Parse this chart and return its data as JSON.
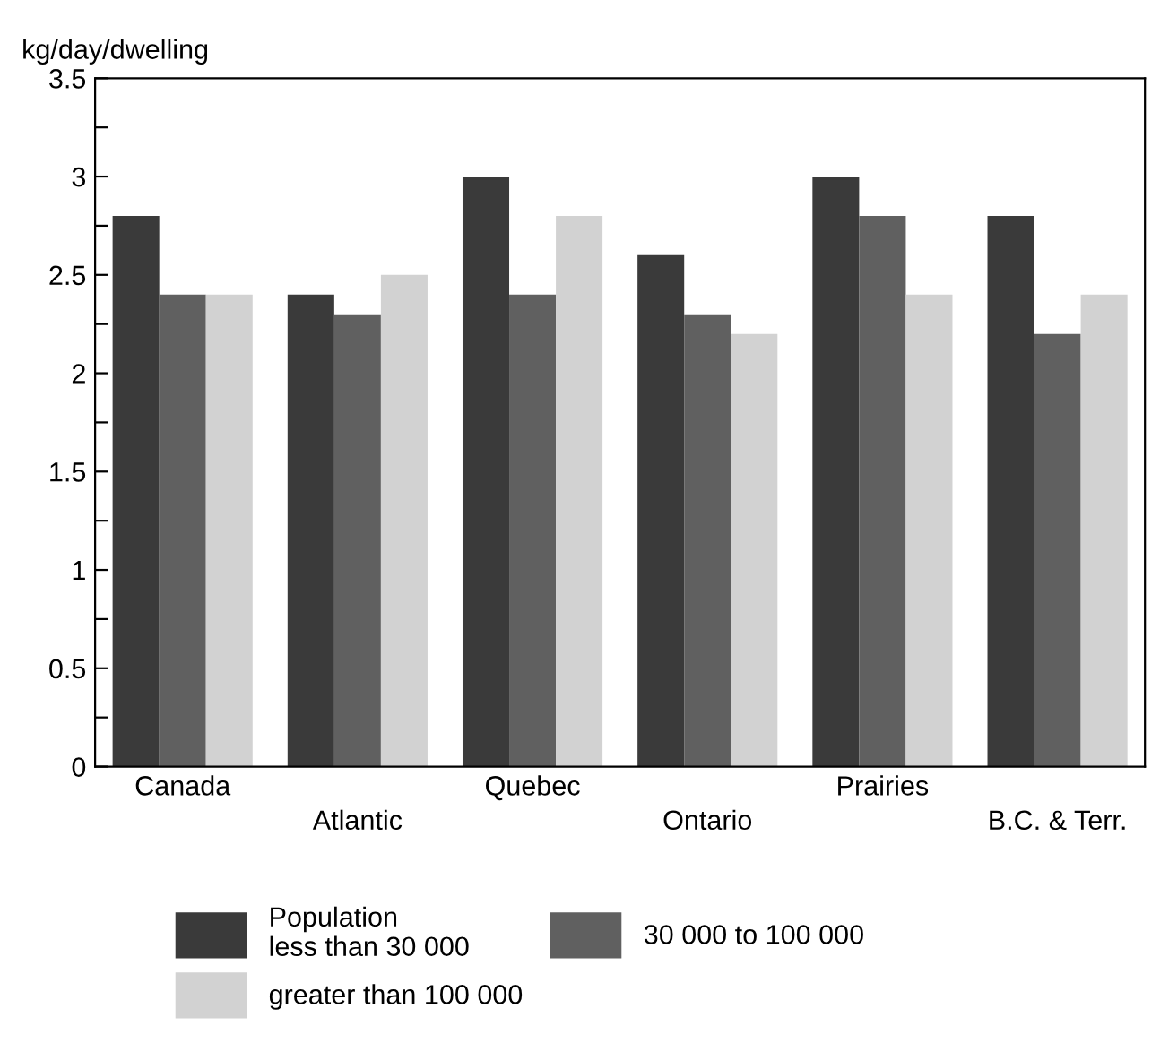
{
  "chart_data": {
    "type": "bar",
    "ylabel": "kg/day/dwelling",
    "categories": [
      "Canada",
      "Atlantic",
      "Quebec",
      "Ontario",
      "Prairies",
      "B.C. & Terr."
    ],
    "series": [
      {
        "name": "Population\nless than 30 000",
        "color": "#3a3a3a",
        "values": [
          2.8,
          2.4,
          3.0,
          2.6,
          3.0,
          2.8
        ]
      },
      {
        "name": "30 000 to 100 000",
        "color": "#606060",
        "values": [
          2.4,
          2.3,
          2.4,
          2.3,
          2.8,
          2.2
        ]
      },
      {
        "name": "greater than 100 000",
        "color": "#d2d2d2",
        "values": [
          2.4,
          2.5,
          2.8,
          2.2,
          2.4,
          2.4
        ]
      }
    ],
    "ylim": [
      0,
      3.5
    ],
    "yticks": [
      0,
      {
        "value": 0.25,
        "label": null
      },
      0.5,
      {
        "value": 0.75,
        "label": null
      },
      1,
      {
        "value": 1.25,
        "label": null
      },
      1.5,
      {
        "value": 1.75,
        "label": null
      },
      2,
      {
        "value": 2.25,
        "label": null
      },
      2.5,
      {
        "value": 2.75,
        "label": null
      },
      3,
      {
        "value": 3.25,
        "label": null
      },
      3.5
    ],
    "grid": false,
    "legend": "bottom"
  }
}
